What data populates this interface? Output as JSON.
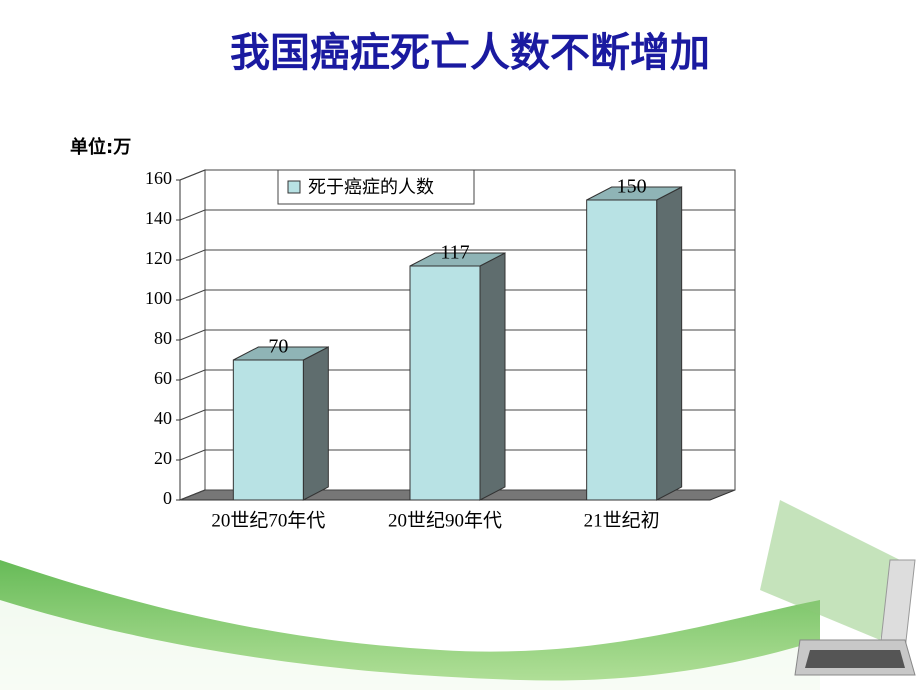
{
  "chart_data": {
    "type": "bar",
    "title": "我国癌症死亡人数不断增加",
    "unit_label": "单位:万",
    "categories": [
      "20世纪70年代",
      "20世纪90年代",
      "21世纪初"
    ],
    "series": [
      {
        "name": "死于癌症的人数",
        "color": "#b8e2e4",
        "values": [
          70,
          117,
          150
        ]
      }
    ],
    "ylim": [
      0,
      160
    ],
    "yticks": [
      0,
      20,
      40,
      60,
      80,
      100,
      120,
      140,
      160
    ],
    "grid": true,
    "legend": "top"
  }
}
